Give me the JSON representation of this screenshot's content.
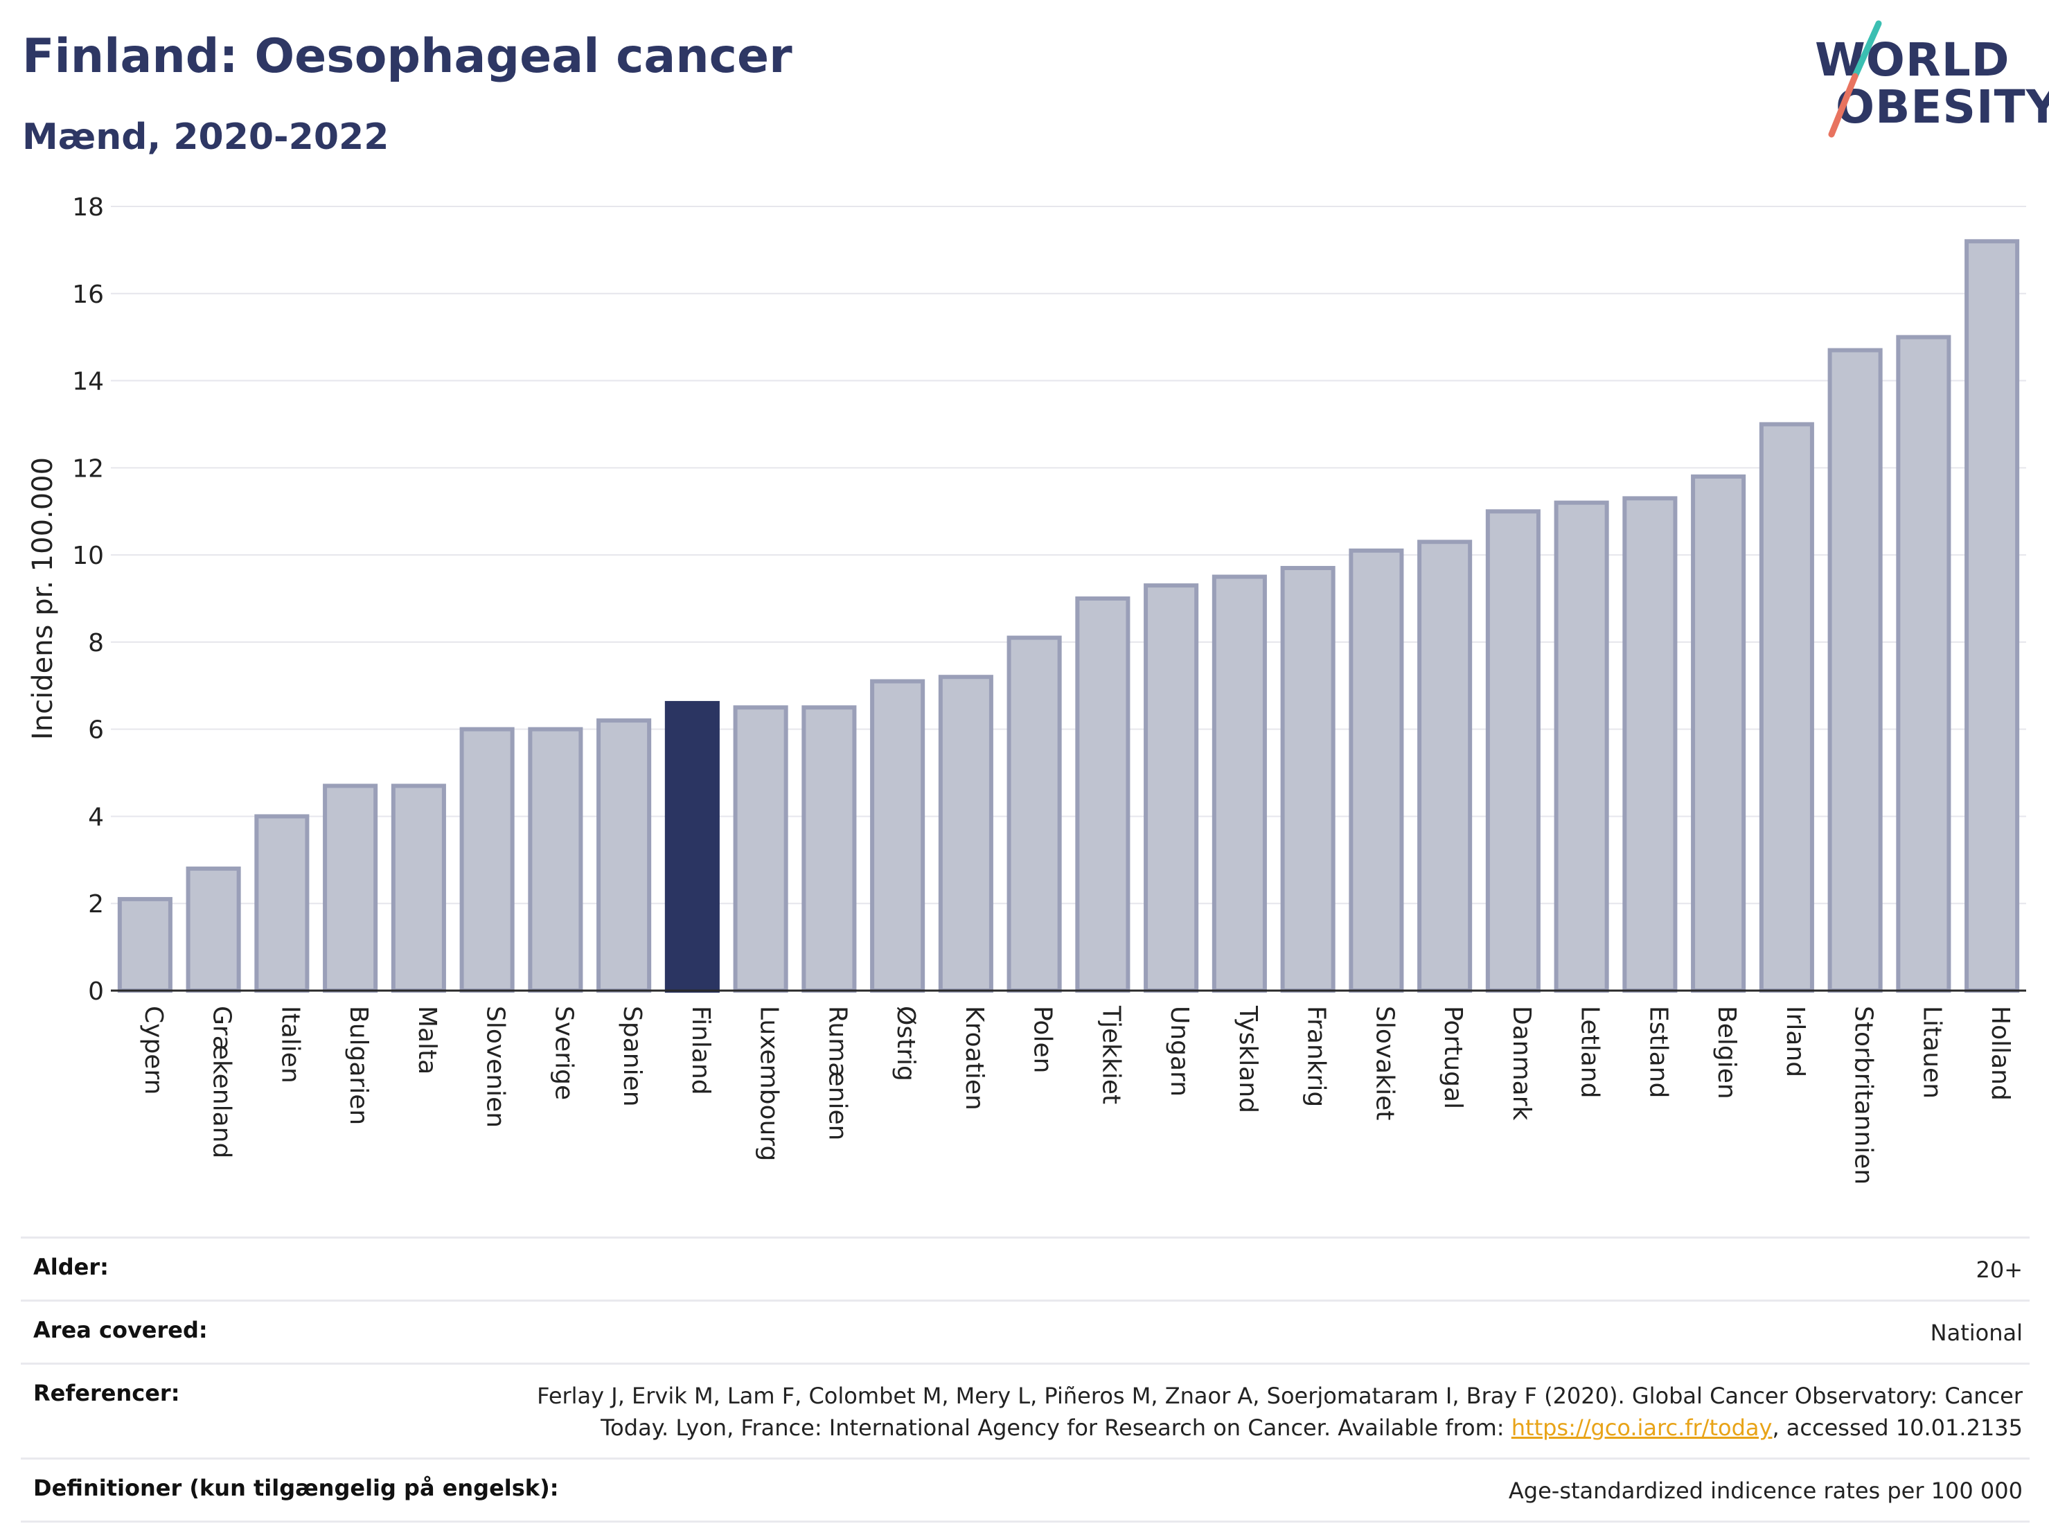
{
  "header": {
    "title": "Finland: Oesophageal cancer",
    "subtitle": "Mænd, 2020-2022"
  },
  "logo": {
    "line1": "WORLD",
    "line2": "OBESITY"
  },
  "chart_data": {
    "type": "bar",
    "title": "Finland: Oesophageal cancer",
    "subtitle": "Mænd, 2020-2022",
    "xlabel": "",
    "ylabel": "Incidens pr. 100.000",
    "ylim": [
      0,
      18
    ],
    "yticks": [
      0,
      2,
      4,
      6,
      8,
      10,
      12,
      14,
      16,
      18
    ],
    "grid": true,
    "highlight": "Finland",
    "categories": [
      "Cypern",
      "Grækenland",
      "Italien",
      "Bulgarien",
      "Malta",
      "Slovenien",
      "Sverige",
      "Spanien",
      "Finland",
      "Luxembourg",
      "Rumænien",
      "Østrig",
      "Kroatien",
      "Polen",
      "Tjekkiet",
      "Ungarn",
      "Tyskland",
      "Frankrig",
      "Slovakiet",
      "Portugal",
      "Danmark",
      "Letland",
      "Estland",
      "Belgien",
      "Irland",
      "Storbritannien",
      "Litauen",
      "Holland"
    ],
    "values": [
      2.1,
      2.8,
      4.0,
      4.7,
      4.7,
      6.0,
      6.0,
      6.2,
      6.6,
      6.5,
      6.5,
      7.1,
      7.2,
      8.1,
      9.0,
      9.3,
      9.5,
      9.7,
      10.1,
      10.3,
      11.0,
      11.2,
      11.3,
      11.8,
      13.0,
      14.7,
      15.0,
      17.2
    ]
  },
  "colors": {
    "bar": "#bfc3d0",
    "bar_stroke": "#9a9fb8",
    "highlight": "#2b3562",
    "title": "#2e3764",
    "logo_teal": "#3bbfb2",
    "logo_coral": "#e8735f",
    "link": "#e8a317"
  },
  "info": {
    "rows": [
      {
        "label": "Alder:",
        "value": "20+"
      },
      {
        "label": "Area covered:",
        "value": "National"
      },
      {
        "label": "Referencer:",
        "value": "Ferlay J, Ervik M, Lam F, Colombet M, Mery L, Piñeros M, Znaor A, Soerjomataram I, Bray F (2020). Global Cancer Observatory: Cancer Today. Lyon, France: International Agency for Research on Cancer. Available from: ",
        "link": "https://gco.iarc.fr/today",
        "suffix": ", accessed 10.01.2135"
      },
      {
        "label": "Definitioner (kun tilgængelig på engelsk):",
        "value": "Age-standardized indicence rates per 100 000"
      }
    ]
  }
}
